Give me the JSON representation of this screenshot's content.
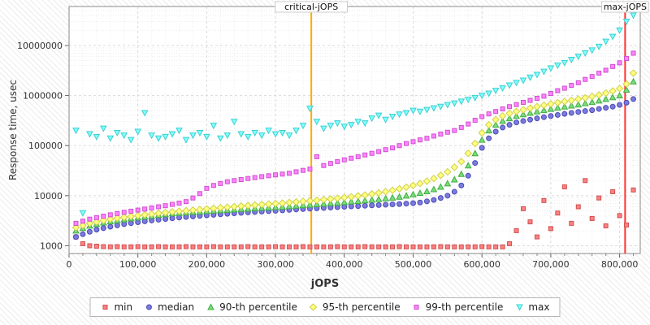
{
  "chart_data": {
    "type": "scatter",
    "title": "",
    "xlabel": "jOPS",
    "ylabel": "Response time, usec",
    "y_scale": "log",
    "grid": true,
    "legend_position": "bottom",
    "xlim": [
      0,
      830000
    ],
    "ylim": [
      700,
      60000000
    ],
    "x_ticks": [
      0,
      100000,
      200000,
      300000,
      400000,
      500000,
      600000,
      700000,
      800000
    ],
    "x_tick_labels": [
      "0",
      "100,000",
      "200,000",
      "300,000",
      "400,000",
      "500,000",
      "600,000",
      "700,000",
      "800,000"
    ],
    "y_ticks": [
      1000,
      10000,
      100000,
      1000000,
      10000000
    ],
    "y_tick_labels": [
      "1000",
      "10000",
      "100000",
      "1000000",
      "10000000"
    ],
    "annotations": [
      {
        "label": "critical-jOPS",
        "x": 352000,
        "color": "#ffaa00"
      },
      {
        "label": "max-jOPS",
        "x": 808000,
        "color": "#ff3333"
      }
    ],
    "x": [
      10000,
      20000,
      30000,
      40000,
      50000,
      60000,
      70000,
      80000,
      90000,
      100000,
      110000,
      120000,
      130000,
      140000,
      150000,
      160000,
      170000,
      180000,
      190000,
      200000,
      210000,
      220000,
      230000,
      240000,
      250000,
      260000,
      270000,
      280000,
      290000,
      300000,
      310000,
      320000,
      330000,
      340000,
      350000,
      360000,
      370000,
      380000,
      390000,
      400000,
      410000,
      420000,
      430000,
      440000,
      450000,
      460000,
      470000,
      480000,
      490000,
      500000,
      510000,
      520000,
      530000,
      540000,
      550000,
      560000,
      570000,
      580000,
      590000,
      600000,
      610000,
      620000,
      630000,
      640000,
      650000,
      660000,
      670000,
      680000,
      690000,
      700000,
      710000,
      720000,
      730000,
      740000,
      750000,
      760000,
      770000,
      780000,
      790000,
      800000,
      810000,
      820000
    ],
    "series": [
      {
        "name": "min",
        "marker": "square",
        "color": "#ff8080",
        "edge": "#d05050",
        "y": [
          1500,
          1100,
          1000,
          980,
          960,
          950,
          960,
          950,
          950,
          960,
          950,
          950,
          960,
          950,
          950,
          950,
          960,
          950,
          950,
          950,
          960,
          950,
          950,
          950,
          950,
          960,
          950,
          950,
          950,
          960,
          950,
          950,
          950,
          960,
          950,
          950,
          950,
          950,
          960,
          950,
          950,
          950,
          960,
          950,
          950,
          950,
          950,
          960,
          950,
          950,
          950,
          950,
          950,
          960,
          950,
          950,
          950,
          950,
          950,
          960,
          950,
          950,
          950,
          1100,
          2000,
          5500,
          3000,
          1500,
          8000,
          2200,
          4500,
          15000,
          2800,
          6000,
          20000,
          3500,
          9000,
          2500,
          12000,
          4000,
          2600,
          13000
        ]
      },
      {
        "name": "median",
        "marker": "circle",
        "color": "#7b7bdc",
        "edge": "#4a4ab8",
        "y": [
          1500,
          1700,
          1900,
          2100,
          2250,
          2400,
          2550,
          2700,
          2820,
          2950,
          3080,
          3200,
          3320,
          3430,
          3540,
          3650,
          3750,
          3850,
          3950,
          4050,
          4150,
          4250,
          4350,
          4450,
          4550,
          4640,
          4730,
          4820,
          4910,
          5000,
          5100,
          5200,
          5300,
          5400,
          5500,
          5600,
          5700,
          5800,
          5900,
          6000,
          6100,
          6200,
          6300,
          6400,
          6500,
          6600,
          6700,
          6800,
          6950,
          7100,
          7300,
          7700,
          8200,
          9000,
          10000,
          12000,
          16000,
          25000,
          45000,
          90000,
          140000,
          190000,
          230000,
          260000,
          290000,
          310000,
          330000,
          350000,
          370000,
          390000,
          410000,
          430000,
          450000,
          470000,
          490000,
          510000,
          540000,
          570000,
          600000,
          650000,
          720000,
          850000
        ]
      },
      {
        "name": "90-th percentile",
        "marker": "triangle-up",
        "color": "#7ddc7d",
        "edge": "#3fae3f",
        "y": [
          2000,
          2250,
          2500,
          2700,
          2900,
          3050,
          3200,
          3350,
          3500,
          3650,
          3800,
          3950,
          4100,
          4250,
          4400,
          4500,
          4600,
          4700,
          4800,
          4900,
          5000,
          5100,
          5200,
          5300,
          5400,
          5500,
          5600,
          5700,
          5800,
          5900,
          6000,
          6150,
          6300,
          6450,
          6600,
          6750,
          6900,
          7050,
          7200,
          7400,
          7600,
          7800,
          8000,
          8250,
          8500,
          8800,
          9100,
          9500,
          10000,
          10600,
          11300,
          12200,
          13400,
          15000,
          17500,
          21000,
          27000,
          40000,
          70000,
          130000,
          200000,
          260000,
          310000,
          350000,
          390000,
          420000,
          450000,
          480000,
          510000,
          540000,
          570000,
          600000,
          630000,
          660000,
          700000,
          740000,
          790000,
          850000,
          920000,
          1000000,
          1300000,
          1900000
        ]
      },
      {
        "name": "95-th percentile",
        "marker": "diamond",
        "color": "#ffff80",
        "edge": "#cfcf4a",
        "y": [
          2300,
          2550,
          2800,
          3000,
          3200,
          3400,
          3550,
          3700,
          3850,
          4000,
          4150,
          4300,
          4450,
          4600,
          4750,
          4900,
          5000,
          5150,
          5300,
          5450,
          5600,
          5750,
          5900,
          6050,
          6200,
          6350,
          6500,
          6650,
          6800,
          6950,
          7100,
          7300,
          7500,
          7700,
          7900,
          8100,
          8350,
          8600,
          8900,
          9200,
          9500,
          9900,
          10300,
          10800,
          11400,
          12000,
          12800,
          13700,
          14800,
          16000,
          17500,
          19500,
          22000,
          25500,
          30000,
          37000,
          48000,
          70000,
          110000,
          180000,
          260000,
          330000,
          390000,
          440000,
          480000,
          520000,
          560000,
          600000,
          640000,
          680000,
          720000,
          760000,
          800000,
          850000,
          900000,
          960000,
          1030000,
          1120000,
          1230000,
          1380000,
          1700000,
          2800000
        ]
      },
      {
        "name": "99-th percentile",
        "marker": "square",
        "color": "#ff85ff",
        "edge": "#cf4fcf",
        "y": [
          2800,
          3100,
          3400,
          3650,
          3900,
          4150,
          4400,
          4650,
          4900,
          5150,
          5400,
          5700,
          6000,
          6300,
          6700,
          7100,
          7600,
          9000,
          11000,
          14000,
          16000,
          17500,
          19000,
          20000,
          21000,
          22000,
          23000,
          24000,
          25000,
          26000,
          27000,
          28000,
          30000,
          32000,
          34000,
          60000,
          40000,
          44000,
          48000,
          52000,
          56000,
          60000,
          65000,
          70000,
          76000,
          83000,
          90000,
          100000,
          110000,
          120000,
          130000,
          140000,
          155000,
          170000,
          185000,
          200000,
          230000,
          270000,
          320000,
          380000,
          430000,
          480000,
          540000,
          600000,
          660000,
          730000,
          800000,
          880000,
          970000,
          1100000,
          1250000,
          1400000,
          1600000,
          1800000,
          2100000,
          2400000,
          2800000,
          3200000,
          3800000,
          4500000,
          5500000,
          7000000
        ]
      },
      {
        "name": "max",
        "marker": "triangle-down",
        "color": "#80ffff",
        "edge": "#3fcfcf",
        "y": [
          200000,
          4500,
          170000,
          150000,
          220000,
          140000,
          180000,
          160000,
          130000,
          190000,
          450000,
          160000,
          140000,
          150000,
          170000,
          200000,
          130000,
          160000,
          180000,
          150000,
          250000,
          140000,
          160000,
          300000,
          170000,
          150000,
          180000,
          160000,
          200000,
          170000,
          180000,
          160000,
          200000,
          250000,
          550000,
          300000,
          220000,
          250000,
          280000,
          240000,
          260000,
          300000,
          280000,
          350000,
          400000,
          330000,
          380000,
          420000,
          450000,
          500000,
          480000,
          520000,
          560000,
          600000,
          650000,
          700000,
          760000,
          830000,
          900000,
          1000000,
          1100000,
          1250000,
          1400000,
          1600000,
          1800000,
          2000000,
          2300000,
          2600000,
          3000000,
          3500000,
          4000000,
          4500000,
          5200000,
          6000000,
          7000000,
          8000000,
          9500000,
          12000000,
          15000000,
          20000000,
          30000000,
          40000000
        ]
      }
    ]
  }
}
